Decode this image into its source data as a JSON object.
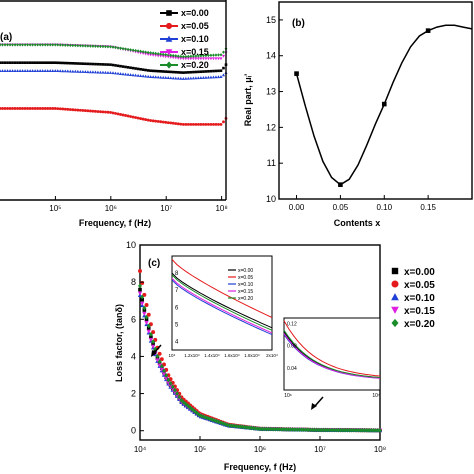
{
  "chart_data": [
    {
      "id": "a",
      "type": "line",
      "panel_label": "(a)",
      "title": "",
      "xlabel": "Frequency, f (Hz)",
      "ylabel": "",
      "x_scale": "log",
      "xlim": [
        10000,
        120000000
      ],
      "xticks": [
        100000,
        1000000,
        10000000,
        100000000
      ],
      "xtick_labels": [
        "10⁵",
        "10⁶",
        "10⁷",
        "10⁸"
      ],
      "ylim": [
        0,
        10
      ],
      "legend_position": "top-right",
      "grid": false,
      "series": [
        {
          "name": "x=0.00",
          "color": "#000000",
          "marker": "square",
          "x": [
            10000,
            100000,
            1000000,
            5000000,
            20000000,
            100000000,
            120000000
          ],
          "y": [
            6.9,
            6.9,
            6.8,
            6.5,
            6.4,
            6.5,
            6.8
          ]
        },
        {
          "name": "x=0.05",
          "color": "#e41a1c",
          "marker": "circle",
          "x": [
            10000,
            100000,
            1000000,
            5000000,
            20000000,
            100000000,
            120000000
          ],
          "y": [
            4.6,
            4.6,
            4.4,
            4.0,
            3.8,
            3.8,
            4.1
          ]
        },
        {
          "name": "x=0.10",
          "color": "#1f3fd6",
          "marker": "triangle",
          "x": [
            10000,
            100000,
            1000000,
            5000000,
            20000000,
            100000000,
            120000000
          ],
          "y": [
            6.5,
            6.5,
            6.4,
            6.2,
            6.1,
            6.2,
            6.4
          ]
        },
        {
          "name": "x=0.15",
          "color": "#e020e0",
          "marker": "triangle-down",
          "x": [
            10000,
            100000,
            1000000,
            5000000,
            20000000,
            100000000,
            120000000
          ],
          "y": [
            7.8,
            7.8,
            7.7,
            7.3,
            7.1,
            7.1,
            7.4
          ]
        },
        {
          "name": "x=0.20",
          "color": "#1a8c2a",
          "marker": "diamond",
          "x": [
            10000,
            100000,
            1000000,
            5000000,
            20000000,
            100000000,
            120000000
          ],
          "y": [
            7.8,
            7.8,
            7.7,
            7.4,
            7.2,
            7.3,
            7.6
          ]
        }
      ]
    },
    {
      "id": "b",
      "type": "line",
      "panel_label": "(b)",
      "title": "",
      "xlabel": "Contents x",
      "ylabel": "Real part, μᵢ'",
      "xlim": [
        -0.02,
        0.2
      ],
      "ylim": [
        10,
        15.5
      ],
      "xticks": [
        0.0,
        0.05,
        0.1,
        0.15
      ],
      "xtick_labels": [
        "0.00",
        "0.05",
        "0.10",
        "0.15"
      ],
      "yticks": [
        10,
        11,
        12,
        13,
        14,
        15
      ],
      "grid": false,
      "series": [
        {
          "name": "",
          "color": "#000000",
          "marker": "square",
          "x": [
            0.0,
            0.05,
            0.1,
            0.15
          ],
          "y": [
            13.5,
            10.4,
            12.65,
            14.7
          ]
        }
      ],
      "curve": {
        "x": [
          0.0,
          0.01,
          0.02,
          0.03,
          0.04,
          0.05,
          0.06,
          0.07,
          0.08,
          0.09,
          0.1,
          0.11,
          0.12,
          0.13,
          0.14,
          0.15,
          0.16,
          0.17,
          0.18,
          0.19,
          0.2
        ],
        "y": [
          13.5,
          12.6,
          11.75,
          11.05,
          10.6,
          10.4,
          10.55,
          10.95,
          11.5,
          12.1,
          12.65,
          13.25,
          13.8,
          14.25,
          14.55,
          14.7,
          14.8,
          14.85,
          14.85,
          14.8,
          14.75
        ]
      }
    },
    {
      "id": "c",
      "type": "line",
      "panel_label": "(c)",
      "title": "",
      "xlabel": "Frequency, f (Hz)",
      "ylabel": "Loss factor, (tanδ)",
      "x_scale": "log",
      "xlim": [
        10000,
        100000000
      ],
      "xticks": [
        10000,
        100000,
        1000000,
        10000000,
        100000000
      ],
      "xtick_labels": [
        "10⁴",
        "10⁵",
        "10⁶",
        "10⁷",
        "10⁸"
      ],
      "ylim": [
        -0.5,
        10
      ],
      "yticks": [
        0,
        2,
        4,
        6,
        8,
        10
      ],
      "legend_position": "right",
      "grid": false,
      "series": [
        {
          "name": "x=0.00",
          "color": "#000000",
          "marker": "square",
          "x": [
            10000,
            12000,
            15000,
            20000,
            30000,
            50000,
            100000,
            300000,
            1000000,
            10000000,
            100000000
          ],
          "y": [
            7.6,
            6.4,
            5.1,
            3.8,
            2.6,
            1.55,
            0.8,
            0.28,
            0.1,
            0.04,
            0.02
          ]
        },
        {
          "name": "x=0.05",
          "color": "#e41a1c",
          "marker": "circle",
          "x": [
            10000,
            12000,
            15000,
            20000,
            30000,
            50000,
            100000,
            300000,
            1000000,
            10000000,
            100000000
          ],
          "y": [
            8.6,
            7.2,
            5.8,
            4.35,
            2.95,
            1.75,
            0.9,
            0.32,
            0.11,
            0.04,
            0.02
          ]
        },
        {
          "name": "x=0.10",
          "color": "#1f3fd6",
          "marker": "triangle",
          "x": [
            10000,
            12000,
            15000,
            20000,
            30000,
            50000,
            100000,
            300000,
            1000000,
            10000000,
            100000000
          ],
          "y": [
            7.3,
            6.1,
            4.9,
            3.65,
            2.5,
            1.5,
            0.78,
            0.27,
            0.1,
            0.04,
            0.02
          ]
        },
        {
          "name": "x=0.15",
          "color": "#e020e0",
          "marker": "triangle-down",
          "x": [
            10000,
            12000,
            15000,
            20000,
            30000,
            50000,
            100000,
            300000,
            1000000,
            10000000,
            100000000
          ],
          "y": [
            7.4,
            6.2,
            4.95,
            3.7,
            2.55,
            1.52,
            0.79,
            0.27,
            0.1,
            0.04,
            0.02
          ]
        },
        {
          "name": "x=0.20",
          "color": "#1a8c2a",
          "marker": "diamond",
          "x": [
            10000,
            12000,
            15000,
            20000,
            30000,
            50000,
            100000,
            300000,
            1000000,
            10000000,
            100000000
          ],
          "y": [
            7.8,
            6.5,
            5.25,
            3.9,
            2.7,
            1.6,
            0.82,
            0.29,
            0.1,
            0.04,
            0.02
          ]
        }
      ],
      "insets": [
        {
          "id": "c-inset-1",
          "xtick_labels": [
            "10⁴",
            "1.2x10⁴",
            "1.4x10⁴",
            "1.6x10⁴",
            "1.8x10⁴",
            "2x10⁴"
          ],
          "ytick_labels": [
            "8",
            "7",
            "6",
            "5",
            "4"
          ],
          "ylim": [
            3.5,
            9
          ],
          "legend": [
            "x=0.00",
            "x=0.05",
            "x=0.10",
            "x=0.15",
            "x=0.20"
          ]
        },
        {
          "id": "c-inset-2",
          "xtick_labels": [
            "10⁶",
            "10⁷"
          ],
          "ytick_labels": [
            "0.12",
            "0.08",
            "0.04"
          ],
          "ylim": [
            0.0,
            0.13
          ]
        }
      ]
    }
  ]
}
